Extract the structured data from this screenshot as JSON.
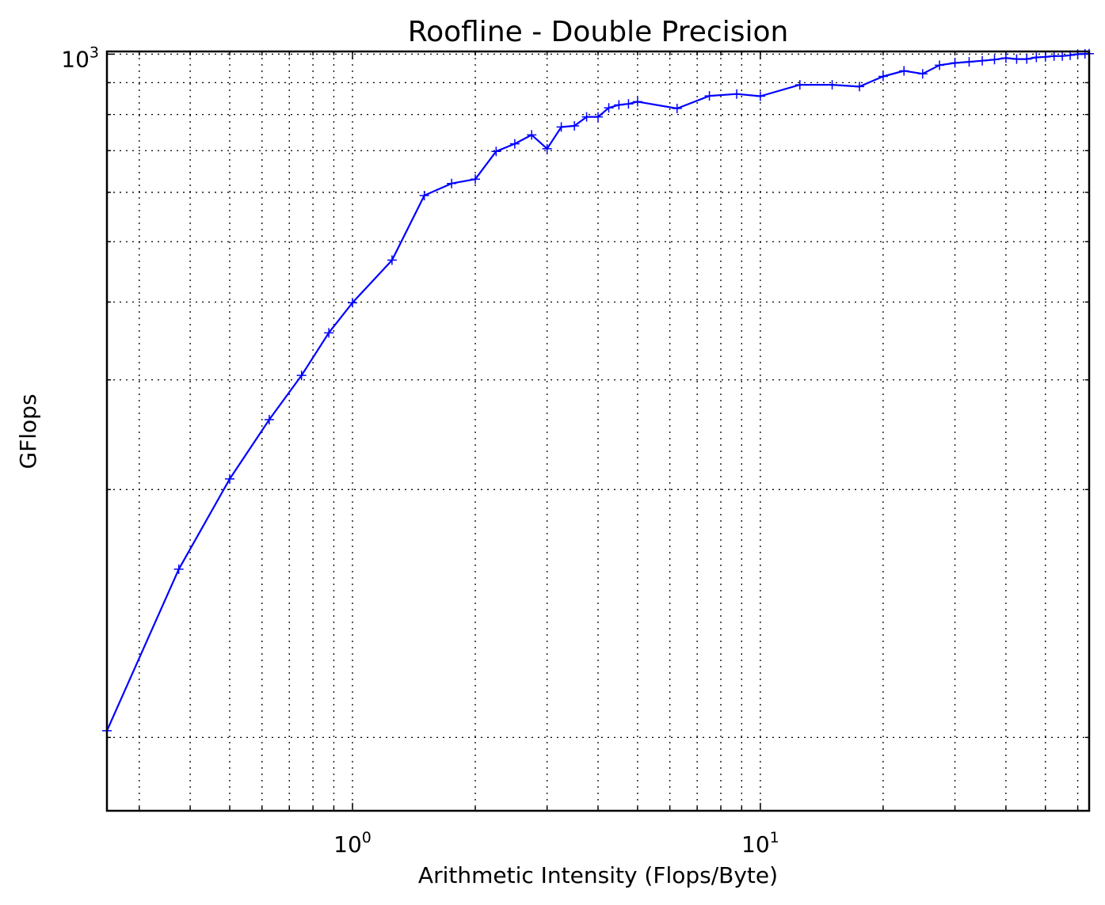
{
  "chart_data": {
    "type": "line",
    "title": "Roofline - Double Precision",
    "xlabel": "Arithmetic Intensity (Flops/Byte)",
    "ylabel": "GFlops",
    "x_scale": "log",
    "y_scale": "log",
    "xlim": [
      0.25,
      64
    ],
    "ylim": [
      61,
      1010
    ],
    "grid": true,
    "x_major_ticks": [
      {
        "value": 1,
        "base": "10",
        "exp": "0"
      },
      {
        "value": 10,
        "base": "10",
        "exp": "1"
      }
    ],
    "y_major_ticks": [
      {
        "value": 1000,
        "base": "10",
        "exp": "3"
      }
    ],
    "x_minor_ticks": [
      0.3,
      0.4,
      0.5,
      0.6,
      0.7,
      0.8,
      0.9,
      2,
      3,
      4,
      5,
      6,
      7,
      8,
      9,
      20,
      30,
      40,
      50,
      60
    ],
    "y_minor_ticks": [
      80,
      200,
      300,
      400,
      500,
      600,
      700,
      800,
      900
    ],
    "line_color": "#0000ff",
    "marker": "+",
    "series": [
      {
        "x": [
          0.25,
          0.375,
          0.5,
          0.625,
          0.75,
          0.875,
          1.0,
          1.25,
          1.5,
          1.75,
          2.0,
          2.25,
          2.5,
          2.75,
          3.0,
          3.25,
          3.5,
          3.75,
          4.0,
          4.25,
          4.5,
          4.75,
          5.0,
          6.25,
          7.5,
          8.75,
          10.0,
          12.5,
          15.0,
          17.5,
          20.0,
          22.5,
          25.0,
          27.5,
          30.0,
          32.5,
          35.0,
          37.5,
          40.0,
          42.5,
          45.0,
          47.5,
          50.0,
          52.5,
          55.0,
          57.5,
          60.0,
          62.5,
          64.0
        ],
        "y": [
          82,
          149,
          208,
          259,
          305,
          357,
          399,
          467,
          593,
          620,
          630,
          698,
          718,
          742,
          705,
          764,
          767,
          793,
          793,
          820,
          829,
          832,
          839,
          818,
          857,
          863,
          856,
          893,
          893,
          887,
          921,
          940,
          930,
          960,
          968,
          972,
          976,
          980,
          986,
          982,
          982,
          988,
          990,
          993,
          993,
          996,
          1000,
          1001,
          1002
        ]
      }
    ]
  }
}
